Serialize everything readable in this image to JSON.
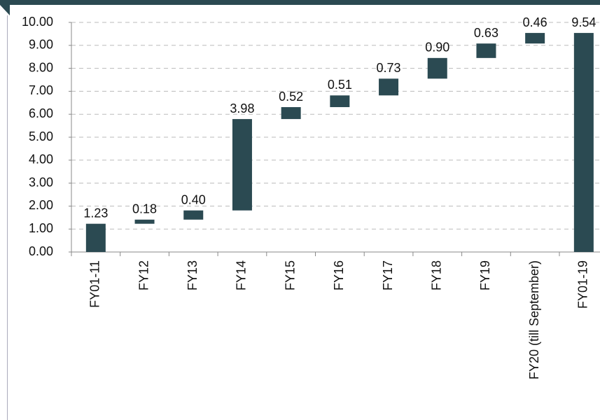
{
  "chart_data": {
    "type": "waterfall",
    "categories": [
      "FY01-11",
      "FY12",
      "FY13",
      "FY14",
      "FY15",
      "FY16",
      "FY17",
      "FY18",
      "FY19",
      "FY20 (till September)",
      "FY01-19"
    ],
    "values": [
      1.23,
      0.18,
      0.4,
      3.98,
      0.52,
      0.51,
      0.73,
      0.9,
      0.63,
      0.46,
      9.54
    ],
    "value_labels": [
      "1.23",
      "0.18",
      "0.40",
      "3.98",
      "0.52",
      "0.51",
      "0.73",
      "0.90",
      "0.63",
      "0.46",
      "9.54"
    ],
    "totals": [
      false,
      false,
      false,
      false,
      false,
      false,
      false,
      false,
      false,
      false,
      true
    ],
    "color": "#2b4a52",
    "ylim": [
      0,
      10
    ],
    "yticks": [
      {
        "value": 0,
        "label": "0.00"
      },
      {
        "value": 1,
        "label": "1.00"
      },
      {
        "value": 2,
        "label": "2.00"
      },
      {
        "value": 3,
        "label": "3.00"
      },
      {
        "value": 4,
        "label": "4.00"
      },
      {
        "value": 5,
        "label": "5.00"
      },
      {
        "value": 6,
        "label": "6.00"
      },
      {
        "value": 7,
        "label": "7.00"
      },
      {
        "value": 8,
        "label": "8.00"
      },
      {
        "value": 9,
        "label": "9.00"
      },
      {
        "value": 10,
        "label": "10.00"
      }
    ],
    "grid": true
  }
}
